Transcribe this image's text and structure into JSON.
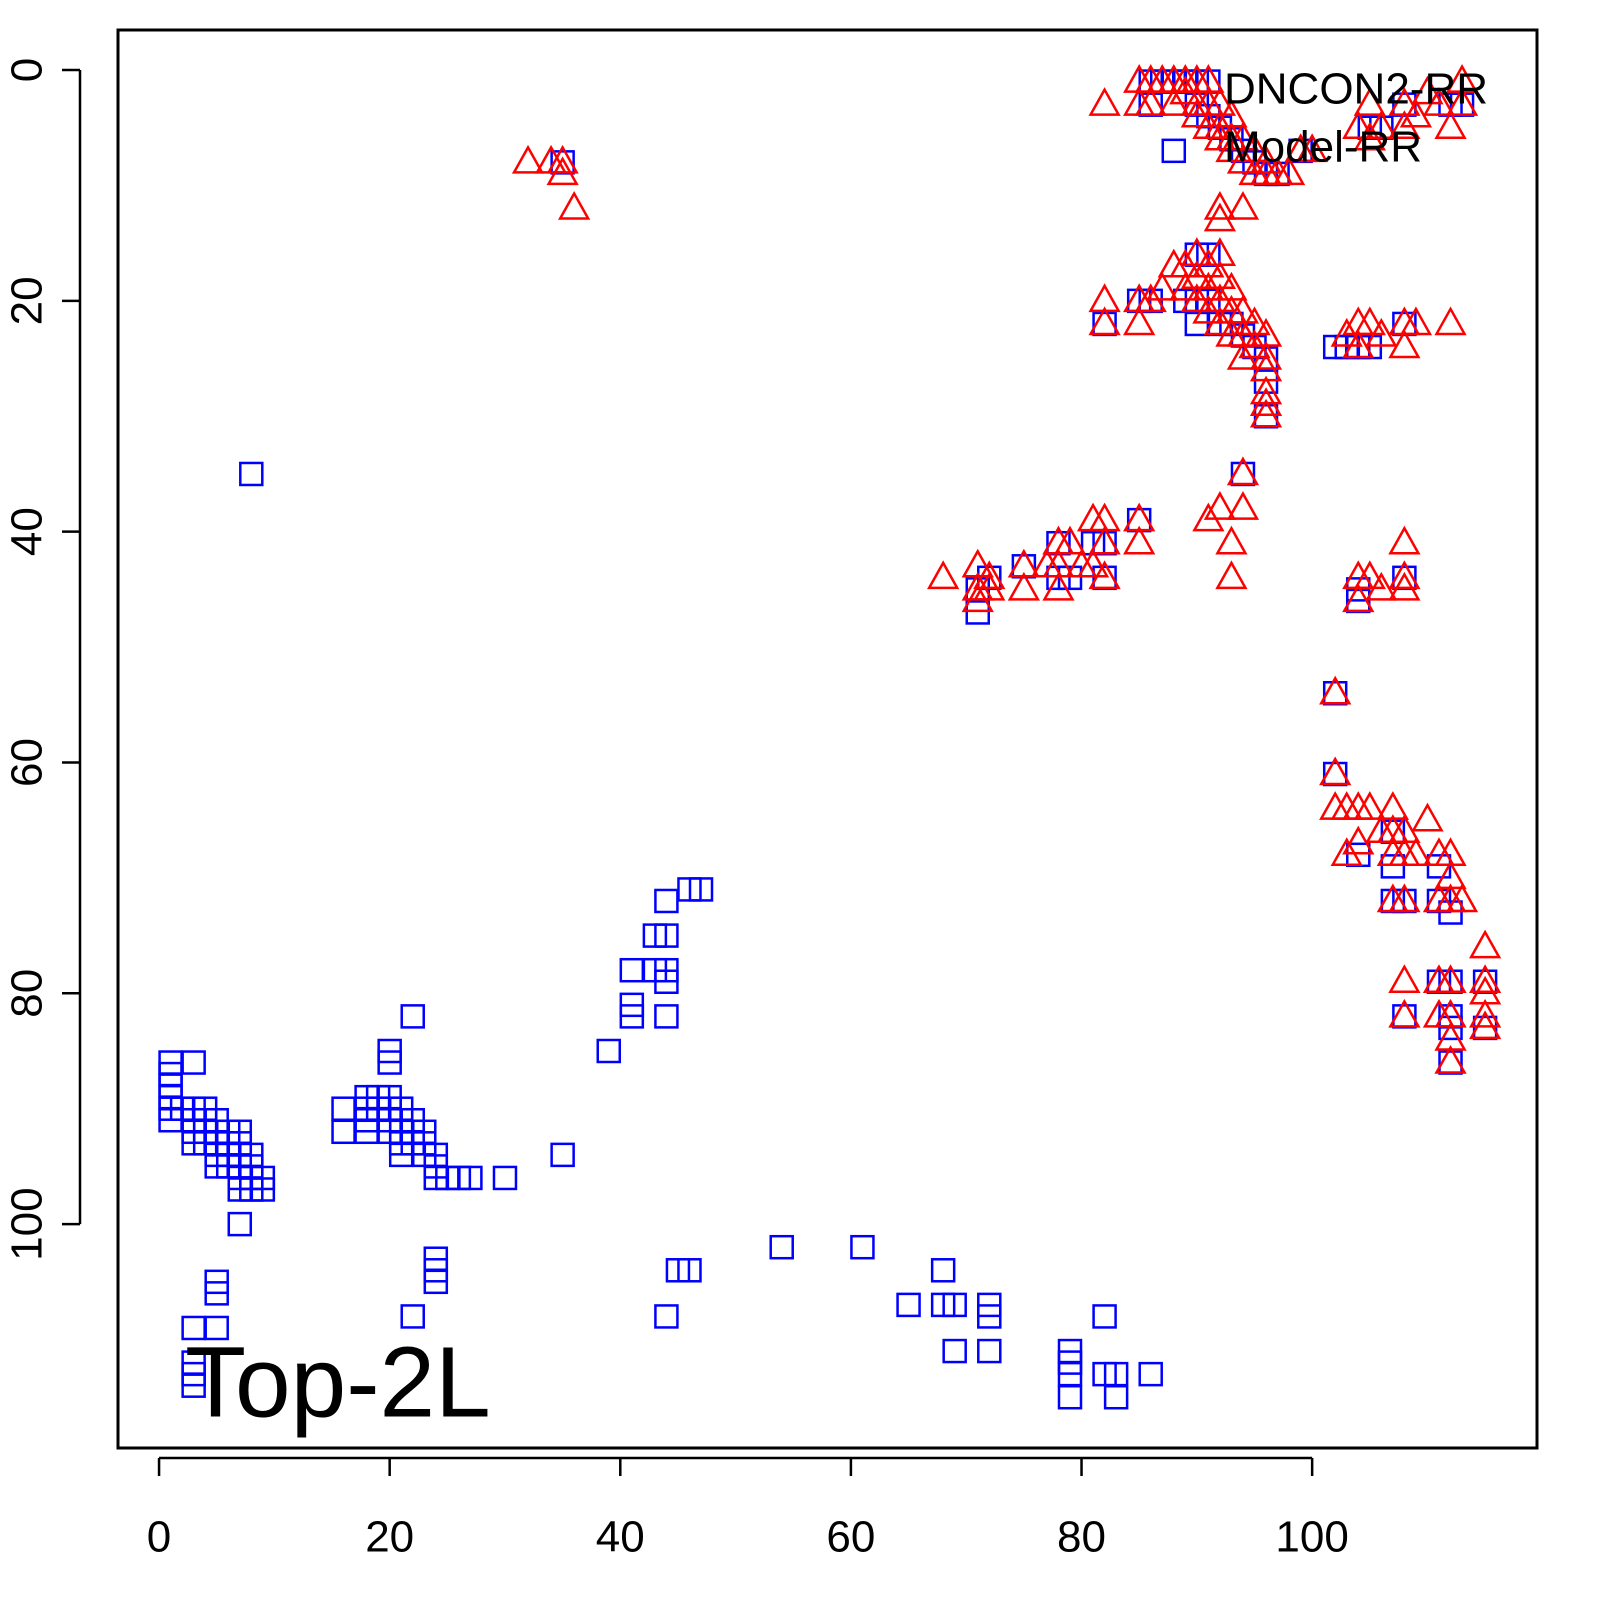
{
  "chart_data": {
    "type": "scatter",
    "annotation": "Top-2L",
    "xlim": [
      -3.56,
      119.5
    ],
    "ylim": [
      119.4,
      -3.47
    ],
    "xticks": [
      0,
      20,
      40,
      60,
      80,
      100
    ],
    "yticks": [
      0,
      20,
      40,
      60,
      80,
      100
    ],
    "legend": "top-right",
    "series": [
      {
        "name": "DNCON2-RR",
        "color": "#0000ff",
        "marker": "square",
        "x": [
          1,
          1,
          1,
          1,
          1,
          1,
          2,
          3,
          3,
          3,
          3,
          3,
          4,
          4,
          4,
          4,
          5,
          5,
          5,
          5,
          5,
          6,
          6,
          6,
          6,
          7,
          7,
          7,
          7,
          7,
          7,
          8,
          8,
          8,
          8,
          9,
          9,
          7,
          16,
          16,
          18,
          18,
          18,
          18,
          19,
          19,
          20,
          20,
          20,
          20,
          20,
          20,
          21,
          21,
          21,
          21,
          21,
          22,
          22,
          22,
          22,
          23,
          23,
          23,
          24,
          24,
          24,
          25,
          26,
          27,
          30,
          35,
          39,
          41,
          41,
          41,
          43,
          43,
          44,
          44,
          44,
          44,
          44,
          46,
          47,
          8,
          5,
          5,
          5,
          3,
          3,
          3,
          3,
          22,
          24,
          24,
          24,
          44,
          45,
          46,
          54,
          61,
          65,
          68,
          68,
          69,
          69,
          72,
          72,
          72,
          79,
          79,
          79,
          79,
          82,
          82,
          83,
          83,
          86,
          35,
          88,
          86,
          87,
          88,
          89,
          90,
          91,
          86,
          90,
          91,
          92,
          93,
          94,
          95,
          96,
          97,
          99,
          112,
          113,
          105,
          106,
          108,
          90,
          91,
          89,
          90,
          91,
          90,
          92,
          93,
          94,
          95,
          96,
          96,
          96,
          94,
          82,
          85,
          86,
          85,
          71,
          71,
          72,
          75,
          78,
          78,
          79,
          81,
          82,
          82,
          102,
          103,
          104,
          105,
          108,
          104,
          104,
          108,
          102,
          102,
          104,
          107,
          107,
          107,
          108,
          111,
          111,
          112,
          111,
          112,
          112,
          112,
          112,
          115,
          115,
          108
        ],
        "values": [
          86,
          87,
          88,
          89,
          90,
          91,
          90,
          86,
          90,
          91,
          92,
          93,
          90,
          91,
          92,
          93,
          91,
          92,
          93,
          94,
          95,
          92,
          93,
          94,
          95,
          92,
          93,
          94,
          95,
          96,
          97,
          94,
          95,
          96,
          97,
          96,
          97,
          100,
          90,
          92,
          89,
          90,
          91,
          92,
          89,
          90,
          85,
          86,
          89,
          90,
          91,
          92,
          90,
          91,
          92,
          93,
          94,
          82,
          91,
          92,
          93,
          92,
          93,
          94,
          94,
          95,
          96,
          96,
          96,
          96,
          96,
          94,
          85,
          78,
          81,
          82,
          75,
          78,
          72,
          75,
          78,
          79,
          82,
          71,
          71,
          35,
          105,
          106,
          109,
          109,
          112,
          113,
          114,
          108,
          103,
          104,
          105,
          108,
          104,
          104,
          102,
          102,
          107,
          104,
          107,
          107,
          111,
          107,
          108,
          111,
          111,
          112,
          113,
          115,
          108,
          113,
          113,
          115,
          113,
          8,
          7,
          1,
          1,
          1,
          1,
          1,
          1,
          3,
          3,
          4,
          5,
          6,
          7,
          8,
          9,
          9,
          7,
          3,
          3,
          5,
          5,
          3,
          16,
          16,
          20,
          20,
          20,
          22,
          22,
          22,
          23,
          24,
          25,
          27,
          30,
          35,
          22,
          20,
          20,
          39,
          45,
          47,
          44,
          43,
          41,
          44,
          44,
          41,
          41,
          44,
          24,
          24,
          24,
          24,
          22,
          45,
          46,
          44,
          54,
          61,
          68,
          66,
          69,
          72,
          72,
          69,
          72,
          73,
          79,
          79,
          82,
          83,
          86,
          79,
          83,
          82
        ]
      },
      {
        "name": "Model-RR",
        "color": "#ff0000",
        "marker": "triangle",
        "x": [
          32,
          34,
          35,
          35,
          36,
          82,
          85,
          86,
          86,
          87,
          88,
          89,
          90,
          91,
          85,
          88,
          89,
          90,
          90,
          91,
          91,
          92,
          92,
          92,
          93,
          93,
          93,
          94,
          94,
          95,
          95,
          96,
          96,
          97,
          98,
          99,
          100,
          104,
          105,
          105,
          106,
          108,
          108,
          109,
          110,
          111,
          112,
          113,
          113,
          92,
          92,
          94,
          88,
          89,
          89,
          90,
          90,
          90,
          91,
          91,
          91,
          92,
          92,
          92,
          92,
          93,
          93,
          93,
          94,
          94,
          94,
          95,
          95,
          96,
          96,
          96,
          96,
          96,
          96,
          82,
          82,
          85,
          85,
          86,
          87,
          103,
          104,
          105,
          104,
          106,
          108,
          108,
          109,
          112,
          94,
          94,
          91,
          92,
          93,
          93,
          68,
          71,
          71,
          71,
          72,
          72,
          75,
          75,
          77,
          78,
          78,
          78,
          79,
          80,
          81,
          81,
          82,
          82,
          82,
          85,
          85,
          104,
          104,
          105,
          106,
          108,
          108,
          108,
          102,
          102,
          102,
          103,
          104,
          105,
          103,
          104,
          106,
          107,
          107,
          107,
          108,
          108,
          109,
          110,
          111,
          112,
          112,
          107,
          108,
          111,
          112,
          113,
          108,
          108,
          111,
          111,
          112,
          112,
          112,
          112,
          115,
          115,
          115,
          115,
          115
        ],
        "values": [
          8,
          8,
          8,
          9,
          12,
          3,
          1,
          1,
          3,
          1,
          1,
          1,
          1,
          1,
          3,
          3,
          2,
          3,
          4,
          3,
          5,
          3,
          5,
          6,
          4,
          6,
          7,
          6,
          8,
          7,
          9,
          8,
          9,
          9,
          9,
          7,
          7,
          5,
          3,
          6,
          5,
          3,
          5,
          4,
          2,
          3,
          5,
          1,
          3,
          12,
          13,
          12,
          17,
          17,
          19,
          16,
          18,
          20,
          17,
          19,
          21,
          16,
          18,
          20,
          22,
          19,
          21,
          23,
          21,
          23,
          25,
          22,
          24,
          23,
          25,
          26,
          28,
          29,
          30,
          20,
          22,
          20,
          22,
          20,
          19,
          23,
          22,
          22,
          24,
          23,
          22,
          24,
          22,
          22,
          35,
          38,
          39,
          38,
          41,
          44,
          44,
          43,
          45,
          46,
          44,
          45,
          43,
          45,
          43,
          41,
          43,
          45,
          41,
          43,
          39,
          43,
          39,
          41,
          44,
          39,
          41,
          44,
          46,
          44,
          45,
          41,
          44,
          45,
          54,
          61,
          64,
          64,
          64,
          64,
          68,
          67,
          66,
          64,
          66,
          68,
          66,
          68,
          68,
          65,
          68,
          68,
          70,
          72,
          72,
          72,
          72,
          72,
          79,
          82,
          79,
          82,
          79,
          82,
          84,
          86,
          76,
          79,
          80,
          82,
          83
        ]
      }
    ]
  }
}
